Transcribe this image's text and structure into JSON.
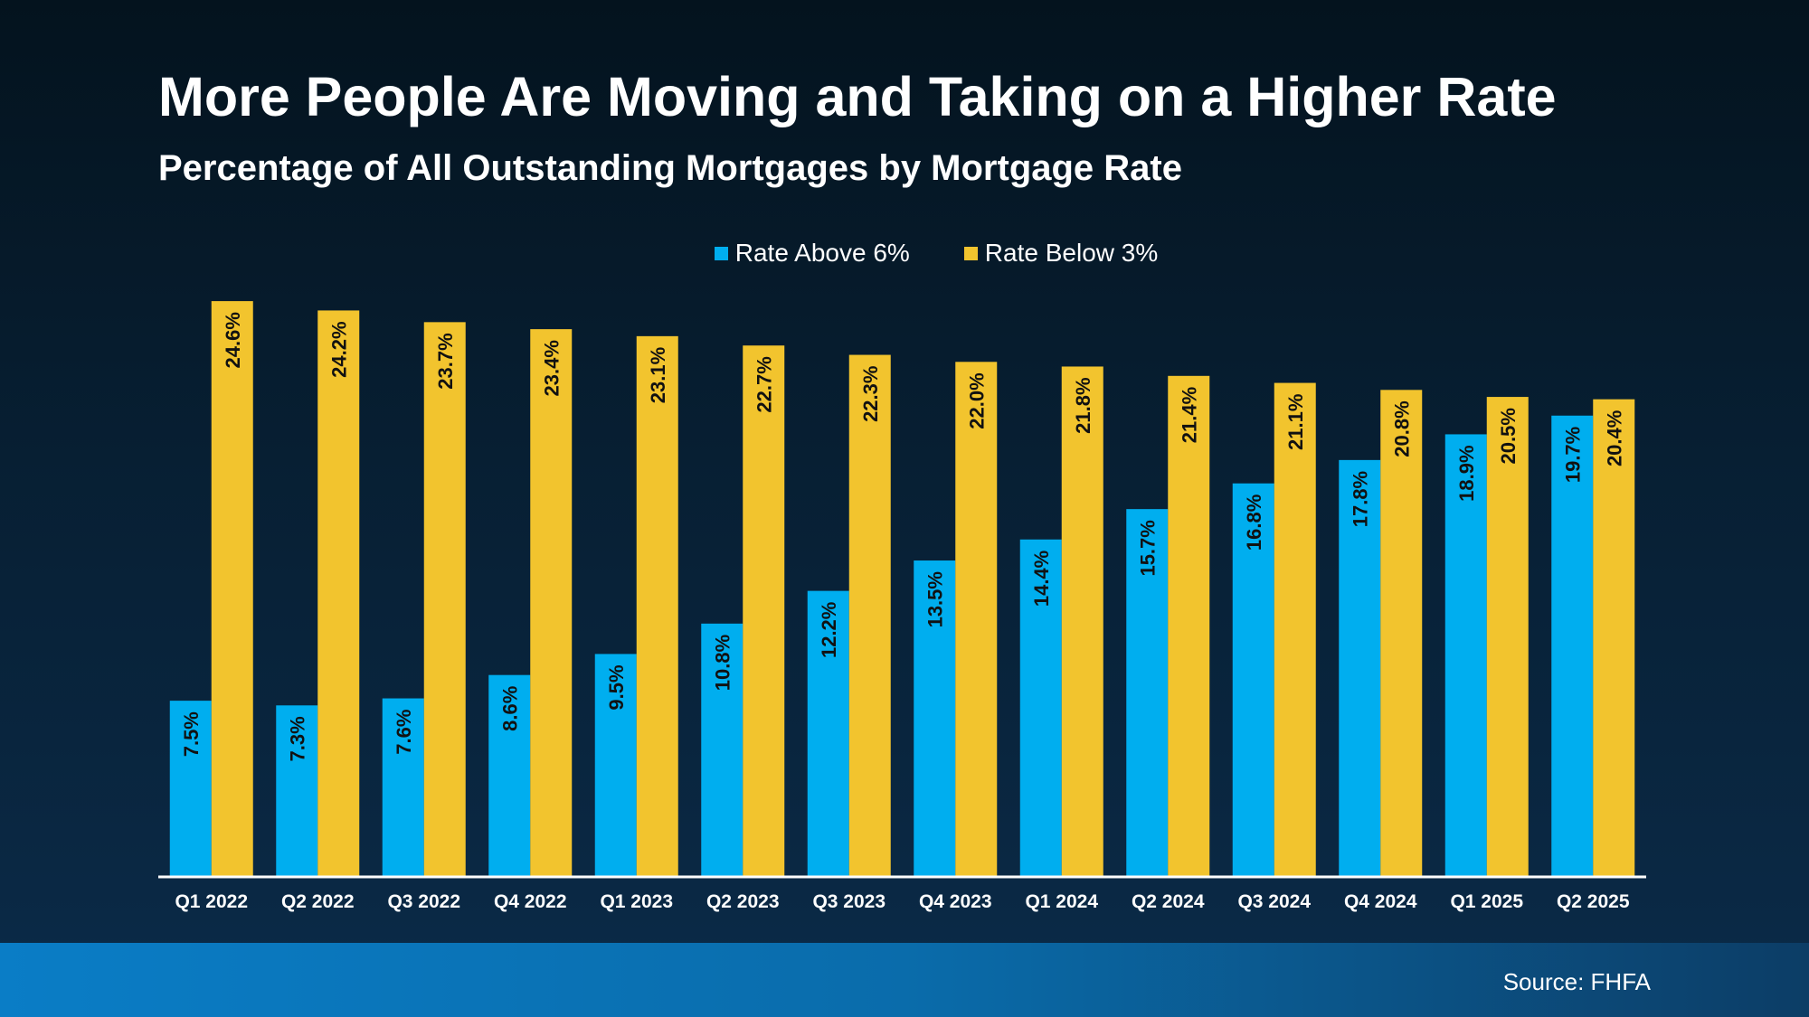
{
  "colors": {
    "rate_above_6": "#00aeef",
    "rate_below_3": "#f2c42e",
    "axis": "#ffffff",
    "label": "#111111"
  },
  "chart_data": {
    "type": "bar",
    "title": "More People Are Moving and Taking on a Higher Rate",
    "subtitle": "Percentage of All Outstanding Mortgages by Mortgage Rate",
    "categories": [
      "Q1 2022",
      "Q2 2022",
      "Q3 2022",
      "Q4 2022",
      "Q1 2023",
      "Q2 2023",
      "Q3 2023",
      "Q4 2023",
      "Q1 2024",
      "Q2 2024",
      "Q3 2024",
      "Q4 2024",
      "Q1 2025",
      "Q2 2025"
    ],
    "series": [
      {
        "name": "Rate Above 6%",
        "values": [
          7.5,
          7.3,
          7.6,
          8.6,
          9.5,
          10.8,
          12.2,
          13.5,
          14.4,
          15.7,
          16.8,
          17.8,
          18.9,
          19.7
        ]
      },
      {
        "name": "Rate Below 3%",
        "values": [
          24.6,
          24.2,
          23.7,
          23.4,
          23.1,
          22.7,
          22.3,
          22.0,
          21.8,
          21.4,
          21.1,
          20.8,
          20.5,
          20.4
        ]
      }
    ],
    "value_format": "%",
    "ylim": [
      0,
      25
    ],
    "grid": false,
    "legend_position": "top-center",
    "xlabel": "",
    "ylabel": ""
  },
  "footer": {
    "source": "Source: FHFA"
  }
}
